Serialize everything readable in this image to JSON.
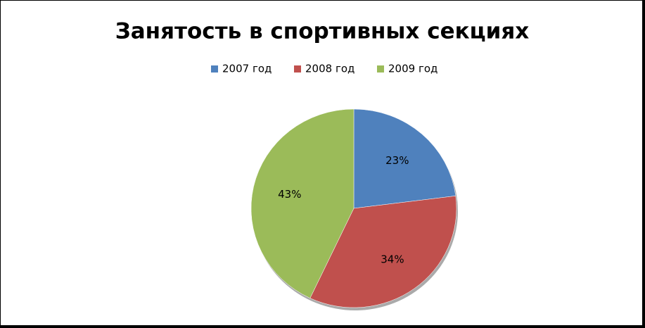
{
  "chart_data": {
    "type": "pie",
    "title": "Занятость в спортивных секциях",
    "categories": [
      "2007 год",
      "2008 год",
      "2009 год"
    ],
    "values": [
      23,
      34,
      43
    ],
    "value_labels": [
      "23%",
      "34%",
      "43%"
    ],
    "colors": [
      "#4f81bd",
      "#c0504d",
      "#9bbb59"
    ],
    "legend": "top"
  }
}
